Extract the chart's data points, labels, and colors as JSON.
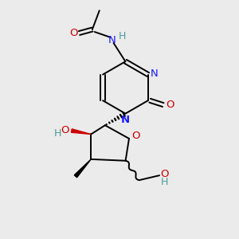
{
  "bg_color": "#ebebeb",
  "atom_colors": {
    "C": "#000000",
    "N": "#1a1aff",
    "O": "#cc0000",
    "H": "#4d9999"
  },
  "bond_color": "#000000",
  "lw": 1.4,
  "fontsize": 9.5
}
